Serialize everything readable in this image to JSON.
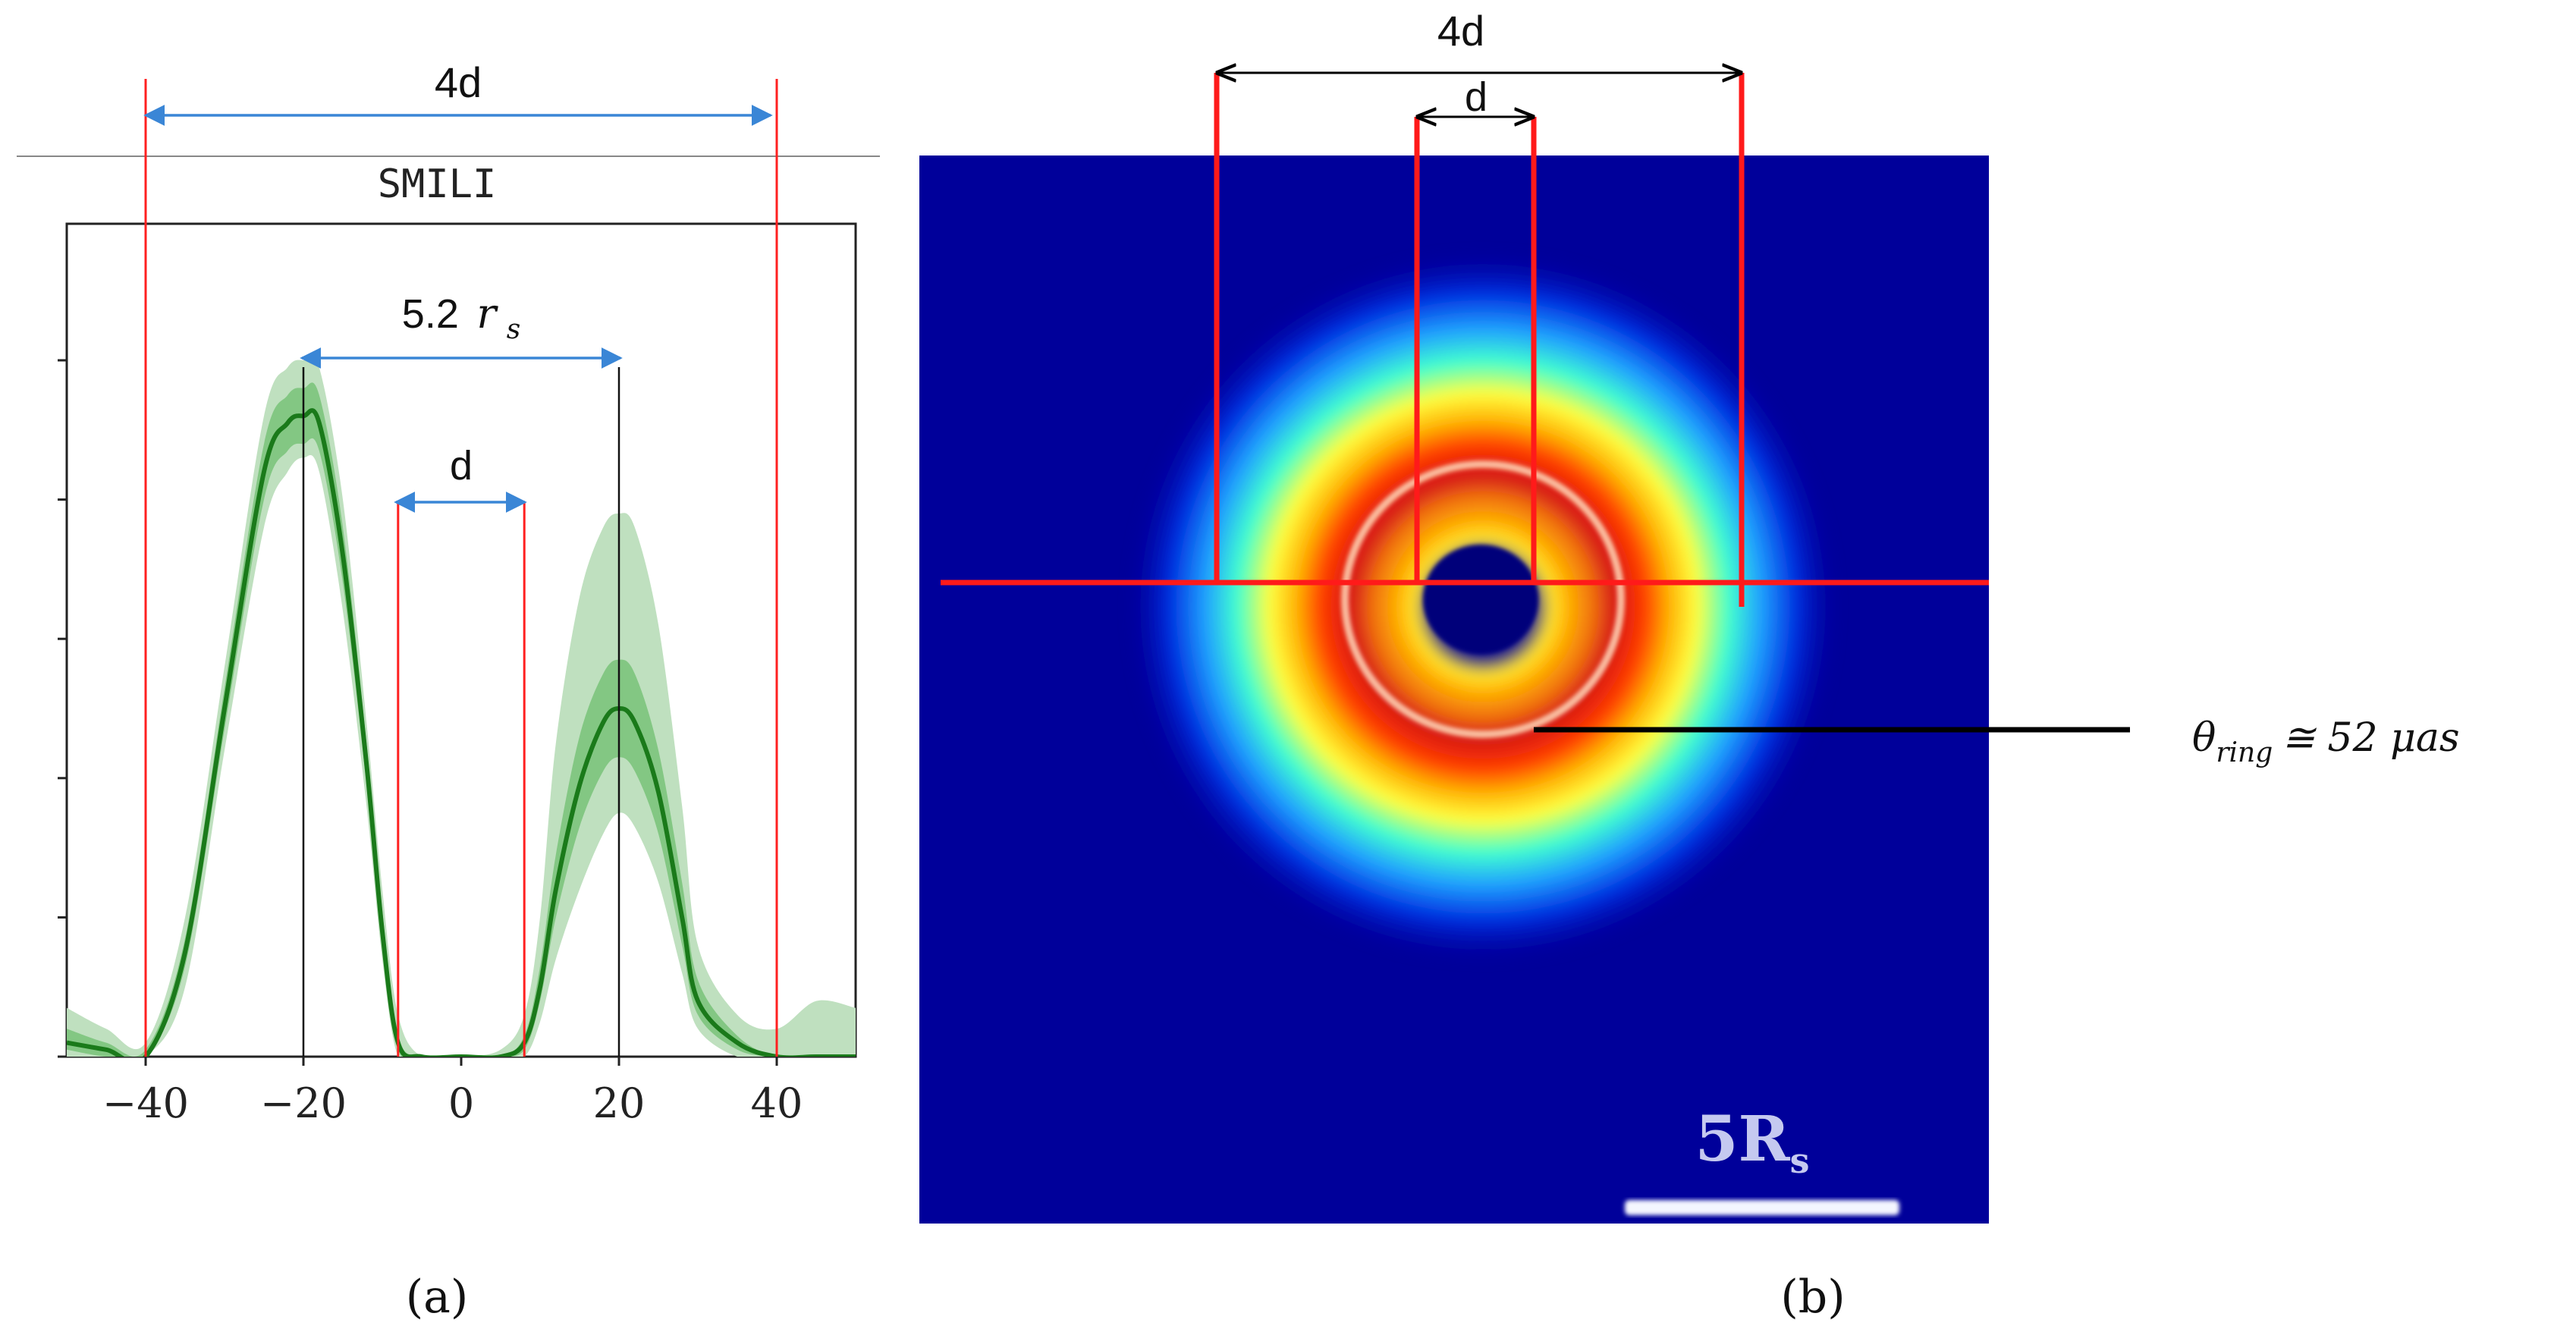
{
  "panel_a": {
    "label": "(a)",
    "title": "SMILI",
    "annotations": {
      "four_d": "4d",
      "shadow": "5.2",
      "shadow_unit": "r",
      "shadow_sub": "s",
      "d": "d"
    }
  },
  "panel_b": {
    "label": "(b)",
    "annotations": {
      "four_d": "4d",
      "d": "d",
      "scalebar": "5R",
      "scalebar_sub": "s",
      "theta": "θ",
      "theta_sub": "ring",
      "theta_value": "≅ 52 μas"
    }
  },
  "colors": {
    "guide_red": "#ff2020",
    "arrow_blue": "#3a86d6",
    "profile_green": "#1a7a1a",
    "band_outer": "#bfe0bf",
    "band_inner": "#6fbf6f",
    "image_bg": "#00009a"
  },
  "chart_data": [
    {
      "type": "line",
      "title": "SMILI",
      "xlabel": "",
      "ylabel": "",
      "xlim": [
        -50,
        50
      ],
      "ylim": [
        0,
        1
      ],
      "x_ticks": [
        -40,
        -20,
        0,
        20,
        40
      ],
      "y_ticks": [
        0,
        0.2,
        0.4,
        0.6,
        0.8,
        1.0
      ],
      "y_tick_labels_shown": false,
      "grid": false,
      "series": [
        {
          "x": [
            -50,
            -45,
            -40,
            -35,
            -30,
            -25,
            -22,
            -20,
            -18,
            -15,
            -12,
            -10,
            -8,
            -5,
            0,
            5,
            8,
            10,
            12,
            15,
            18,
            20,
            22,
            25,
            28,
            30,
            35,
            40,
            45,
            50
          ],
          "y": [
            0.02,
            0.01,
            0.0,
            0.15,
            0.5,
            0.84,
            0.91,
            0.92,
            0.91,
            0.72,
            0.42,
            0.18,
            0.02,
            0.0,
            0.0,
            0.0,
            0.02,
            0.1,
            0.24,
            0.39,
            0.48,
            0.5,
            0.48,
            0.38,
            0.2,
            0.08,
            0.02,
            0.0,
            0.0,
            0.0
          ]
        }
      ],
      "bands": [
        {
          "lower": [
            0.0,
            0.0,
            0.0,
            0.1,
            0.44,
            0.76,
            0.84,
            0.86,
            0.84,
            0.64,
            0.36,
            0.14,
            0.0,
            0.0,
            0.0,
            0.0,
            0.0,
            0.05,
            0.14,
            0.24,
            0.32,
            0.35,
            0.33,
            0.25,
            0.12,
            0.04,
            0.0,
            0.0,
            0.0,
            0.0
          ],
          "upper": [
            0.07,
            0.04,
            0.02,
            0.2,
            0.56,
            0.92,
            0.99,
            1.0,
            0.99,
            0.8,
            0.48,
            0.24,
            0.06,
            0.0,
            0.0,
            0.01,
            0.06,
            0.2,
            0.45,
            0.66,
            0.76,
            0.78,
            0.76,
            0.62,
            0.36,
            0.16,
            0.06,
            0.04,
            0.08,
            0.07
          ]
        },
        {
          "lower": [
            0.01,
            0.0,
            0.0,
            0.13,
            0.47,
            0.8,
            0.87,
            0.88,
            0.87,
            0.68,
            0.39,
            0.16,
            0.01,
            0.0,
            0.0,
            0.0,
            0.01,
            0.08,
            0.2,
            0.33,
            0.41,
            0.43,
            0.41,
            0.32,
            0.16,
            0.06,
            0.01,
            0.0,
            0.0,
            0.0
          ],
          "upper": [
            0.04,
            0.02,
            0.01,
            0.17,
            0.53,
            0.88,
            0.95,
            0.96,
            0.95,
            0.76,
            0.45,
            0.21,
            0.03,
            0.0,
            0.0,
            0.0,
            0.03,
            0.13,
            0.29,
            0.46,
            0.55,
            0.57,
            0.55,
            0.44,
            0.25,
            0.11,
            0.03,
            0.0,
            0.0,
            0.0
          ]
        }
      ],
      "guides": {
        "red_x": [
          -40,
          -8,
          8,
          40
        ],
        "black_x": [
          -20,
          20
        ]
      }
    }
  ]
}
